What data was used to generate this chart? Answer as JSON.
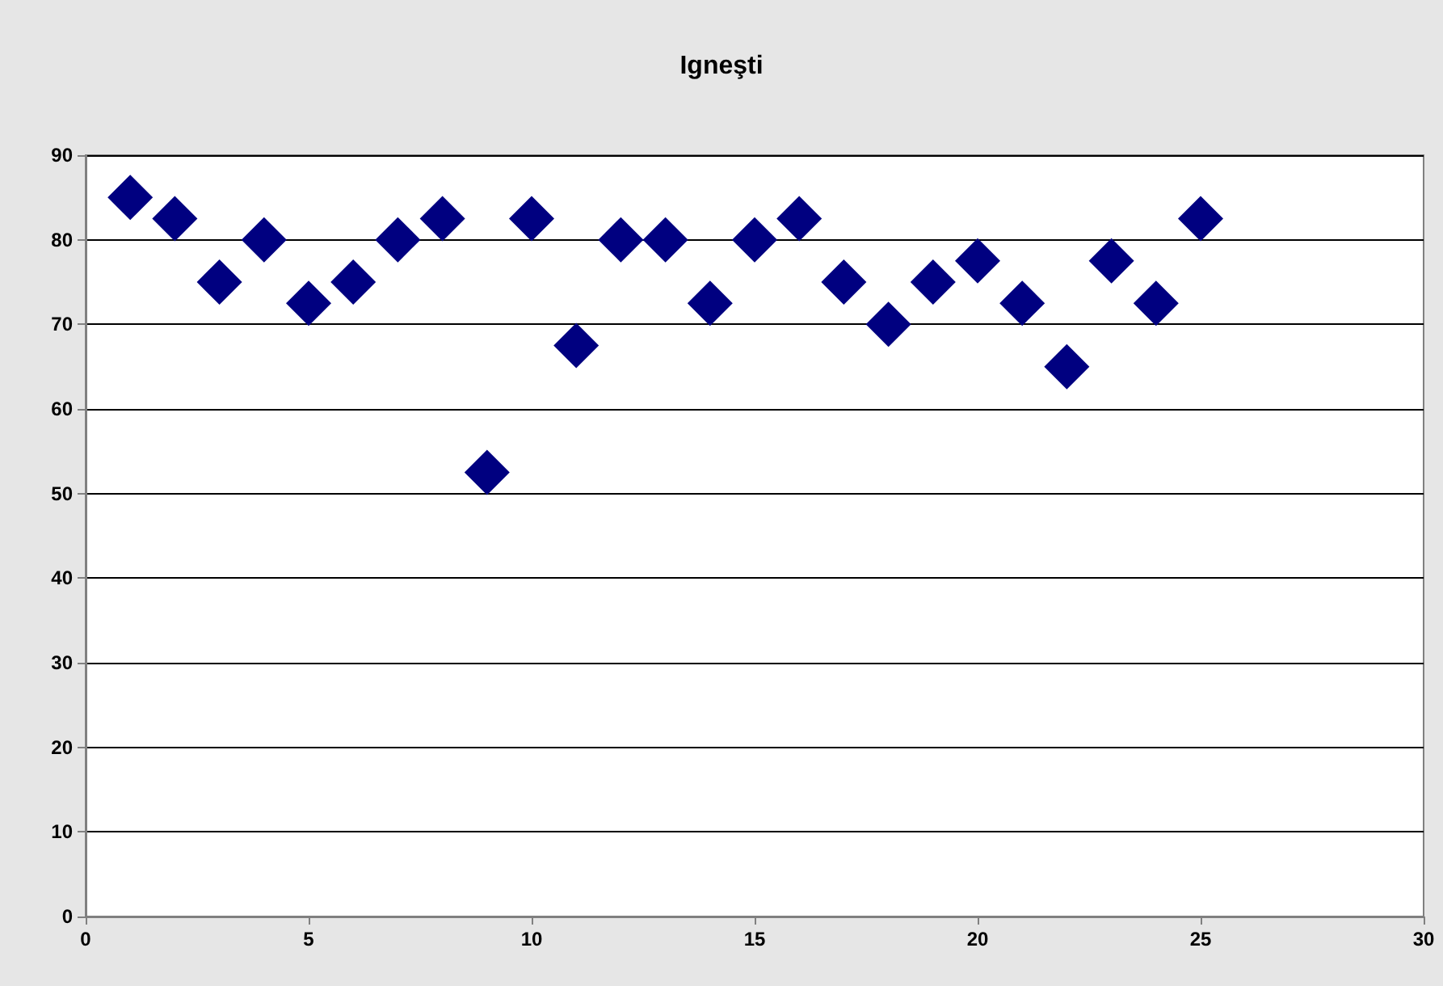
{
  "chart_data": {
    "type": "scatter",
    "title": "Igneşti",
    "x": [
      1,
      2,
      3,
      4,
      5,
      6,
      7,
      8,
      9,
      10,
      11,
      12,
      13,
      14,
      15,
      16,
      17,
      18,
      19,
      20,
      21,
      22,
      23,
      24,
      25
    ],
    "series": [
      {
        "color": "#000080",
        "values": [
          85,
          82.5,
          75,
          80,
          72.5,
          75,
          80,
          82.5,
          52.5,
          82.5,
          67.5,
          80,
          80,
          72.5,
          80,
          82.5,
          75,
          70,
          75,
          77.5,
          72.5,
          65,
          77.5,
          72.5,
          82.5
        ]
      }
    ],
    "xlim": [
      0,
      30
    ],
    "xticks": [
      0,
      5,
      10,
      15,
      20,
      25,
      30
    ],
    "ylim": [
      0,
      90
    ],
    "yticks": [
      0,
      10,
      20,
      30,
      40,
      50,
      60,
      70,
      80,
      90
    ],
    "grid": "y",
    "marker": "diamond"
  }
}
